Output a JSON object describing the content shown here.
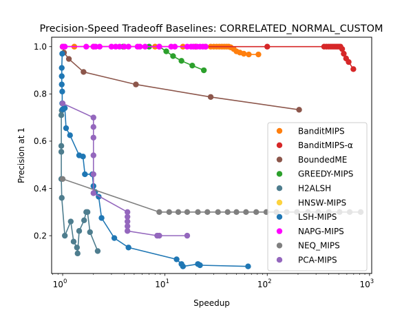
{
  "chart_data": {
    "type": "scatter",
    "title": "Precision-Speed Tradeoff Baselines: CORRELATED_NORMAL_CUSTOM",
    "xlabel": "Speedup",
    "ylabel": "Precision at 1",
    "xscale": "log",
    "xlim": [
      0.78,
      1050
    ],
    "ylim": [
      0.04,
      1.04
    ],
    "xticks": [
      1,
      10,
      100,
      1000
    ],
    "xtick_labels": [
      "10^0",
      "10^1",
      "10^2",
      "10^3"
    ],
    "yticks": [
      0.2,
      0.4,
      0.6,
      0.8,
      1.0
    ],
    "ytick_labels": [
      "0.2",
      "0.4",
      "0.6",
      "0.8",
      "1.0"
    ],
    "grid": false,
    "legend_position": "center-right",
    "series": [
      {
        "name": "BanditMIPS",
        "color": "#ff7f0e",
        "connected": true,
        "points": [
          [
            1.0,
            1.0
          ],
          [
            1.3,
            1.0
          ],
          [
            2.0,
            1.0
          ],
          [
            4.0,
            1.0
          ],
          [
            8.0,
            1.0
          ],
          [
            15,
            1.0
          ],
          [
            25,
            1.0
          ],
          [
            28,
            1.0
          ],
          [
            30,
            1.0
          ],
          [
            32,
            1.0
          ],
          [
            34,
            1.0
          ],
          [
            36,
            1.0
          ],
          [
            38,
            1.0
          ],
          [
            40,
            1.0
          ],
          [
            42,
            1.0
          ],
          [
            44,
            0.997
          ],
          [
            47,
            0.99
          ],
          [
            50,
            0.98
          ],
          [
            54,
            0.975
          ],
          [
            59,
            0.97
          ],
          [
            66,
            0.967
          ],
          [
            82,
            0.967
          ]
        ]
      },
      {
        "name": "BanditMIPS-α",
        "color": "#d62728",
        "connected": true,
        "points": [
          [
            1.0,
            1.0
          ],
          [
            20,
            1.0
          ],
          [
            100,
            1.0
          ],
          [
            360,
            1.0
          ],
          [
            380,
            1.0
          ],
          [
            400,
            1.0
          ],
          [
            420,
            1.0
          ],
          [
            440,
            1.0
          ],
          [
            460,
            1.0
          ],
          [
            480,
            1.0
          ],
          [
            500,
            1.0
          ],
          [
            520,
            1.0
          ],
          [
            540,
            0.99
          ],
          [
            560,
            0.97
          ],
          [
            590,
            0.95
          ],
          [
            625,
            0.935
          ],
          [
            695,
            0.905
          ]
        ]
      },
      {
        "name": "BoundedME",
        "color": "#8c564b",
        "connected": true,
        "points": [
          [
            1.0,
            1.0
          ],
          [
            1.03,
            0.975
          ],
          [
            1.15,
            0.948
          ],
          [
            1.6,
            0.893
          ],
          [
            5.2,
            0.84
          ],
          [
            28,
            0.787
          ],
          [
            205,
            0.733
          ]
        ]
      },
      {
        "name": "GREEDY-MIPS",
        "color": "#2ca02c",
        "connected": true,
        "points": [
          [
            1.0,
            1.0
          ],
          [
            3.9,
            1.0
          ],
          [
            7.0,
            1.0
          ],
          [
            8.8,
            1.0
          ],
          [
            10.3,
            0.98
          ],
          [
            12.0,
            0.96
          ],
          [
            14.5,
            0.94
          ],
          [
            18.5,
            0.92
          ],
          [
            24.0,
            0.9
          ]
        ]
      },
      {
        "name": "H2ALSH",
        "color": "#4e7d8e",
        "connected": true,
        "points": [
          [
            0.98,
            0.73
          ],
          [
            0.97,
            0.71
          ],
          [
            0.97,
            0.58
          ],
          [
            0.97,
            0.555
          ],
          [
            0.97,
            0.44
          ],
          [
            0.98,
            0.36
          ],
          [
            1.05,
            0.2
          ],
          [
            1.2,
            0.26
          ],
          [
            1.28,
            0.175
          ],
          [
            1.38,
            0.15
          ],
          [
            1.4,
            0.125
          ],
          [
            1.45,
            0.22
          ],
          [
            1.62,
            0.265
          ],
          [
            1.7,
            0.3
          ],
          [
            1.75,
            0.3
          ],
          [
            1.85,
            0.215
          ],
          [
            2.2,
            0.135
          ]
        ]
      },
      {
        "name": "HNSW-MIPS",
        "color": "#fdd33f",
        "connected": false,
        "points": [
          [
            1.0,
            1.0
          ]
        ]
      },
      {
        "name": "LSH-MIPS",
        "color": "#1f77b4",
        "connected": true,
        "points": [
          [
            0.99,
            0.97
          ],
          [
            0.98,
            0.91
          ],
          [
            0.98,
            0.875
          ],
          [
            0.98,
            0.84
          ],
          [
            0.99,
            0.81
          ],
          [
            0.99,
            0.76
          ],
          [
            1.0,
            0.735
          ],
          [
            1.05,
            0.74
          ],
          [
            1.08,
            0.655
          ],
          [
            1.18,
            0.625
          ],
          [
            1.45,
            0.54
          ],
          [
            1.58,
            0.535
          ],
          [
            1.65,
            0.46
          ],
          [
            1.95,
            0.46
          ],
          [
            2.0,
            0.41
          ],
          [
            2.08,
            0.385
          ],
          [
            2.25,
            0.365
          ],
          [
            2.4,
            0.275
          ],
          [
            3.2,
            0.19
          ],
          [
            4.4,
            0.15
          ],
          [
            13,
            0.1
          ],
          [
            14.5,
            0.08
          ],
          [
            15,
            0.07
          ],
          [
            21,
            0.08
          ],
          [
            22,
            0.075
          ],
          [
            65,
            0.07
          ]
        ]
      },
      {
        "name": "NAPG-MIPS",
        "color": "#ff00ff",
        "connected": true,
        "points": [
          [
            1.0,
            1.0
          ],
          [
            1.05,
            1.0
          ],
          [
            1.7,
            1.0
          ],
          [
            2.0,
            1.0
          ],
          [
            2.1,
            1.0
          ],
          [
            2.3,
            1.0
          ],
          [
            3.0,
            1.0
          ],
          [
            3.3,
            1.0
          ],
          [
            3.6,
            1.0
          ],
          [
            4.0,
            1.0
          ],
          [
            4.4,
            1.0
          ],
          [
            5.4,
            1.0
          ],
          [
            5.7,
            1.0
          ],
          [
            6.4,
            1.0
          ],
          [
            8.8,
            1.0
          ],
          [
            11.5,
            1.0
          ],
          [
            12.5,
            1.0
          ],
          [
            16.5,
            1.0
          ],
          [
            18,
            1.0
          ],
          [
            19,
            1.0
          ],
          [
            20.5,
            1.0
          ],
          [
            22,
            1.0
          ],
          [
            23.5,
            1.0
          ],
          [
            25,
            1.0
          ]
        ]
      },
      {
        "name": "NEQ_MIPS",
        "color": "#7f7f7f",
        "connected": true,
        "points": [
          [
            1.0,
            0.44
          ],
          [
            8.8,
            0.3
          ],
          [
            11,
            0.3
          ],
          [
            13.5,
            0.3
          ],
          [
            16.5,
            0.3
          ],
          [
            21,
            0.3
          ],
          [
            26,
            0.3
          ],
          [
            33,
            0.3
          ],
          [
            41,
            0.3
          ],
          [
            50,
            0.3
          ],
          [
            62,
            0.3
          ],
          [
            78,
            0.3
          ],
          [
            98,
            0.3
          ],
          [
            123,
            0.3
          ],
          [
            155,
            0.3
          ],
          [
            195,
            0.3
          ],
          [
            250,
            0.3
          ],
          [
            315,
            0.3
          ],
          [
            400,
            0.3
          ],
          [
            510,
            0.3
          ],
          [
            640,
            0.3
          ],
          [
            820,
            0.3
          ]
        ]
      },
      {
        "name": "PCA-MIPS",
        "color": "#9467bd",
        "connected": true,
        "points": [
          [
            1.0,
            0.76
          ],
          [
            2.0,
            0.7
          ],
          [
            2.0,
            0.66
          ],
          [
            2.0,
            0.615
          ],
          [
            2.0,
            0.54
          ],
          [
            2.0,
            0.46
          ],
          [
            2.0,
            0.38
          ],
          [
            4.3,
            0.3
          ],
          [
            4.3,
            0.28
          ],
          [
            4.3,
            0.26
          ],
          [
            4.3,
            0.24
          ],
          [
            4.3,
            0.22
          ],
          [
            8.4,
            0.2
          ],
          [
            8.8,
            0.2
          ],
          [
            16.5,
            0.2
          ]
        ]
      }
    ]
  }
}
